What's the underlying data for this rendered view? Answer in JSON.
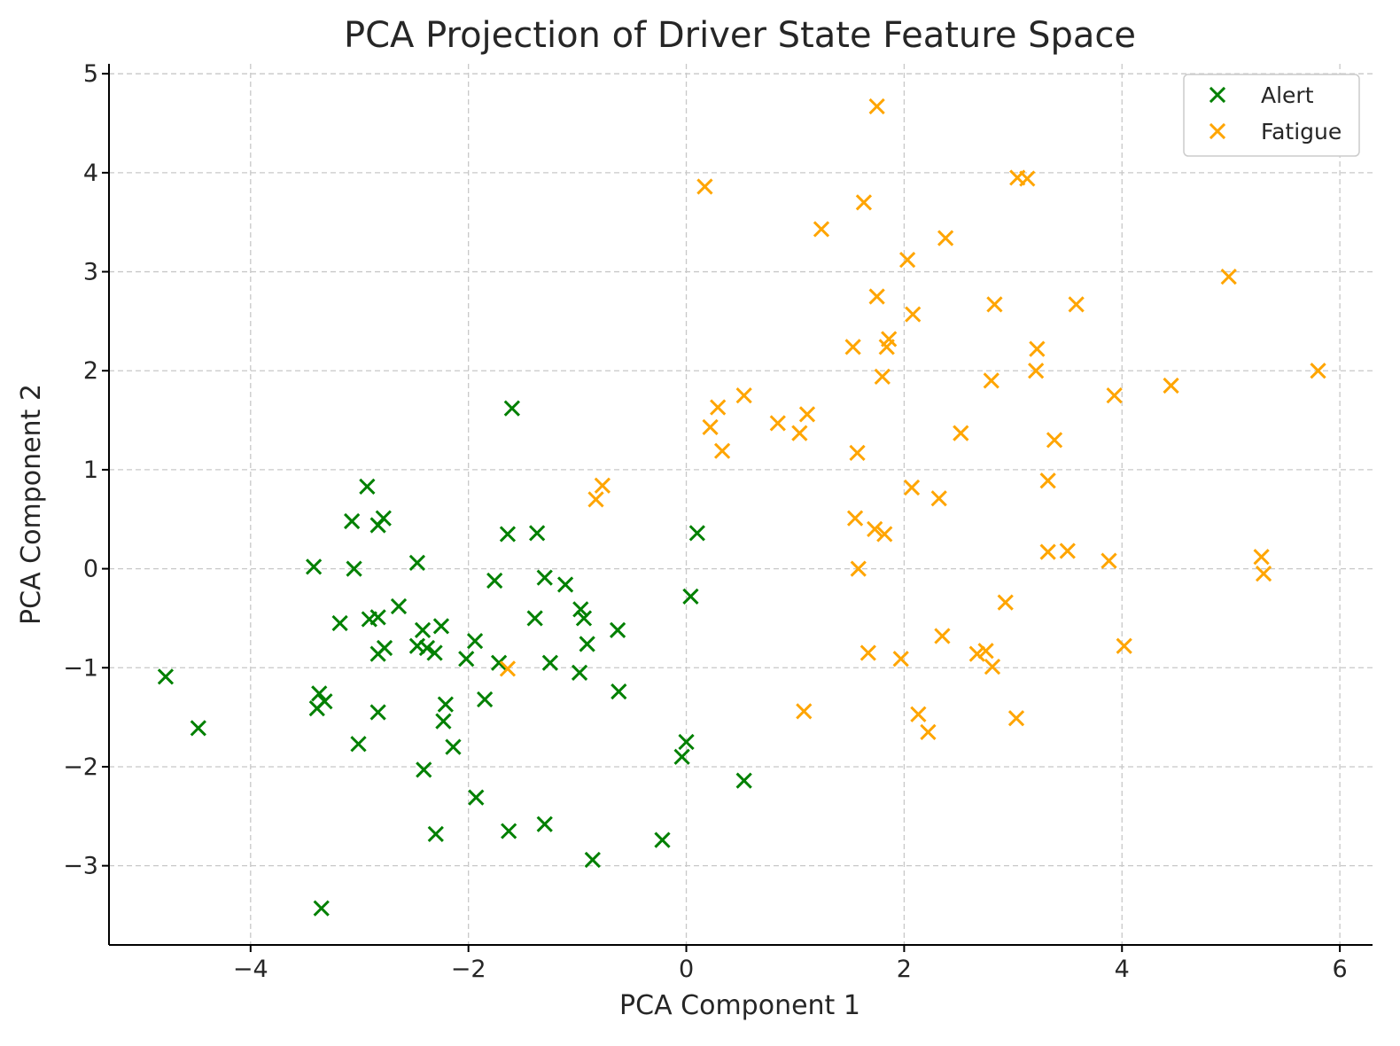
{
  "chart_data": {
    "type": "scatter",
    "title": "PCA Projection of Driver State Feature Space",
    "xlabel": "PCA Component 1",
    "ylabel": "PCA Component 2",
    "xlim": [
      -5.3,
      6.3
    ],
    "ylim": [
      -3.8,
      5.1
    ],
    "xticks": [
      -4,
      -2,
      0,
      2,
      4,
      6
    ],
    "yticks": [
      -3,
      -2,
      -1,
      0,
      1,
      2,
      3,
      4,
      5
    ],
    "xtick_labels": [
      "−4",
      "−2",
      "0",
      "2",
      "4",
      "6"
    ],
    "ytick_labels": [
      "−3",
      "−2",
      "−1",
      "0",
      "1",
      "2",
      "3",
      "4",
      "5"
    ],
    "grid": true,
    "legend_position": "top-right",
    "marker": "x",
    "series": [
      {
        "name": "Alert",
        "color": "#008000",
        "points": [
          [
            -4.78,
            -1.09
          ],
          [
            -4.48,
            -1.61
          ],
          [
            -3.42,
            0.02
          ],
          [
            -3.37,
            -1.26
          ],
          [
            -3.39,
            -1.41
          ],
          [
            -3.32,
            -1.34
          ],
          [
            -3.35,
            -3.43
          ],
          [
            -3.18,
            -0.55
          ],
          [
            -3.07,
            0.48
          ],
          [
            -3.05,
            0.0
          ],
          [
            -3.01,
            -1.77
          ],
          [
            -2.93,
            0.83
          ],
          [
            -2.91,
            -0.51
          ],
          [
            -2.83,
            0.44
          ],
          [
            -2.78,
            0.51
          ],
          [
            -2.83,
            -0.49
          ],
          [
            -2.83,
            -0.86
          ],
          [
            -2.77,
            -0.8
          ],
          [
            -2.83,
            -1.45
          ],
          [
            -2.64,
            -0.38
          ],
          [
            -2.47,
            0.06
          ],
          [
            -2.47,
            -0.78
          ],
          [
            -2.42,
            -0.62
          ],
          [
            -2.38,
            -0.8
          ],
          [
            -2.31,
            -0.85
          ],
          [
            -2.25,
            -0.58
          ],
          [
            -2.21,
            -1.37
          ],
          [
            -2.23,
            -1.54
          ],
          [
            -2.14,
            -1.8
          ],
          [
            -2.41,
            -2.03
          ],
          [
            -2.3,
            -2.68
          ],
          [
            -2.02,
            -0.91
          ],
          [
            -1.94,
            -0.73
          ],
          [
            -1.93,
            -2.31
          ],
          [
            -1.85,
            -1.32
          ],
          [
            -1.76,
            -0.12
          ],
          [
            -1.72,
            -0.95
          ],
          [
            -1.64,
            0.35
          ],
          [
            -1.6,
            1.62
          ],
          [
            -1.63,
            -2.65
          ],
          [
            -1.37,
            0.36
          ],
          [
            -1.39,
            -0.5
          ],
          [
            -1.3,
            -0.09
          ],
          [
            -1.25,
            -0.95
          ],
          [
            -1.3,
            -2.58
          ],
          [
            -1.11,
            -0.16
          ],
          [
            -0.97,
            -0.41
          ],
          [
            -0.94,
            -0.5
          ],
          [
            -0.91,
            -0.76
          ],
          [
            -0.98,
            -1.05
          ],
          [
            -0.63,
            -0.62
          ],
          [
            -0.62,
            -1.24
          ],
          [
            -0.86,
            -2.94
          ],
          [
            -0.22,
            -2.74
          ],
          [
            0.04,
            -0.28
          ],
          [
            0.1,
            0.36
          ],
          [
            0.0,
            -1.75
          ],
          [
            -0.04,
            -1.9
          ],
          [
            0.53,
            -2.14
          ]
        ]
      },
      {
        "name": "Fatigue",
        "color": "#FFA500",
        "points": [
          [
            1.75,
            4.67
          ],
          [
            0.17,
            3.86
          ],
          [
            1.63,
            3.7
          ],
          [
            1.24,
            3.43
          ],
          [
            3.04,
            3.95
          ],
          [
            3.13,
            3.94
          ],
          [
            2.38,
            3.34
          ],
          [
            2.03,
            3.12
          ],
          [
            4.98,
            2.95
          ],
          [
            1.75,
            2.75
          ],
          [
            2.83,
            2.67
          ],
          [
            3.58,
            2.67
          ],
          [
            2.08,
            2.57
          ],
          [
            1.53,
            2.24
          ],
          [
            1.86,
            2.32
          ],
          [
            1.84,
            2.24
          ],
          [
            3.22,
            2.22
          ],
          [
            1.8,
            1.94
          ],
          [
            3.21,
            2.0
          ],
          [
            2.8,
            1.9
          ],
          [
            5.8,
            2.0
          ],
          [
            4.45,
            1.85
          ],
          [
            3.93,
            1.75
          ],
          [
            0.53,
            1.75
          ],
          [
            0.29,
            1.63
          ],
          [
            1.11,
            1.56
          ],
          [
            0.84,
            1.47
          ],
          [
            0.22,
            1.43
          ],
          [
            1.04,
            1.37
          ],
          [
            2.52,
            1.37
          ],
          [
            3.38,
            1.3
          ],
          [
            0.33,
            1.19
          ],
          [
            1.57,
            1.17
          ],
          [
            3.32,
            0.89
          ],
          [
            2.07,
            0.82
          ],
          [
            2.32,
            0.71
          ],
          [
            -0.77,
            0.84
          ],
          [
            -0.83,
            0.7
          ],
          [
            1.55,
            0.51
          ],
          [
            1.73,
            0.4
          ],
          [
            1.82,
            0.35
          ],
          [
            3.32,
            0.17
          ],
          [
            3.5,
            0.18
          ],
          [
            3.88,
            0.08
          ],
          [
            5.28,
            0.12
          ],
          [
            5.3,
            -0.05
          ],
          [
            1.58,
            0.0
          ],
          [
            2.93,
            -0.34
          ],
          [
            2.35,
            -0.68
          ],
          [
            4.02,
            -0.78
          ],
          [
            1.67,
            -0.85
          ],
          [
            1.97,
            -0.91
          ],
          [
            2.67,
            -0.86
          ],
          [
            2.75,
            -0.83
          ],
          [
            2.81,
            -0.99
          ],
          [
            -1.64,
            -1.01
          ],
          [
            1.08,
            -1.44
          ],
          [
            2.13,
            -1.47
          ],
          [
            2.22,
            -1.65
          ],
          [
            3.03,
            -1.51
          ]
        ]
      }
    ]
  }
}
